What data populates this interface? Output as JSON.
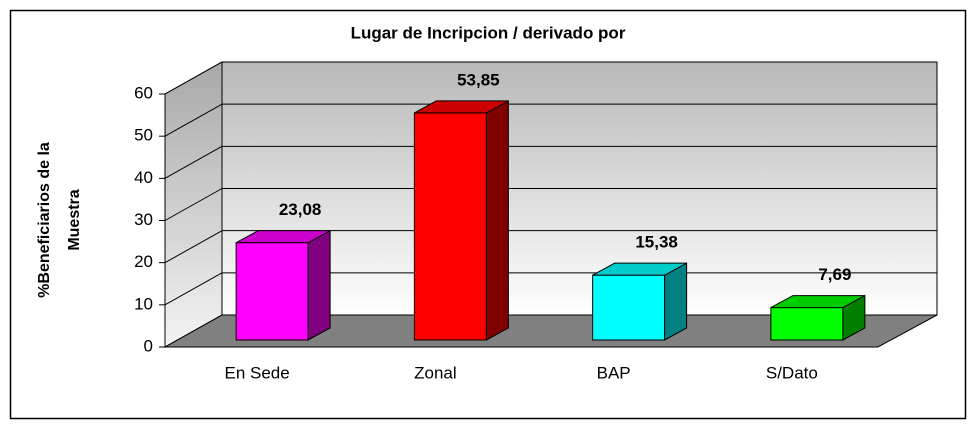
{
  "chart_data": {
    "type": "bar3d",
    "title": "Lugar de Incripcion / derivado por",
    "ylabel": [
      "%Beneficiarios de la",
      "Muestra"
    ],
    "categories": [
      "En Sede",
      "Zonal",
      "BAP",
      "S/Dato"
    ],
    "values": [
      23.08,
      53.85,
      15.38,
      7.69
    ],
    "value_labels": [
      "23,08",
      "53,85",
      "15,38",
      "7,69"
    ],
    "colors": [
      "#ff00ff",
      "#ff0000",
      "#00ffff",
      "#00ff00"
    ],
    "ylim": [
      0,
      60
    ],
    "yticks": [
      0,
      10,
      20,
      30,
      40,
      50,
      60
    ],
    "grid": true
  }
}
